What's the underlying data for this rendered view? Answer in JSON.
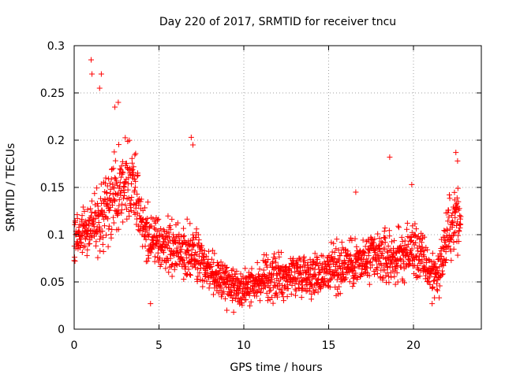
{
  "chart_data": {
    "type": "scatter",
    "title": "Day 220 of 2017, SRMTID for receiver tncu",
    "xlabel": "GPS time / hours",
    "ylabel": "SRMTID / TECUs",
    "xlim": [
      0,
      24
    ],
    "ylim": [
      0,
      0.3
    ],
    "grid": true,
    "marker": "+",
    "color": "#ff0000",
    "x_ticks": [
      {
        "value": 0,
        "label": "0"
      },
      {
        "value": 5,
        "label": "5"
      },
      {
        "value": 10,
        "label": "10"
      },
      {
        "value": 15,
        "label": "15"
      },
      {
        "value": 20,
        "label": "20"
      }
    ],
    "y_ticks": [
      {
        "value": 0,
        "label": "0"
      },
      {
        "value": 0.05,
        "label": "0.05"
      },
      {
        "value": 0.1,
        "label": "0.1"
      },
      {
        "value": 0.15,
        "label": "0.15"
      },
      {
        "value": 0.2,
        "label": "0.2"
      },
      {
        "value": 0.25,
        "label": "0.25"
      },
      {
        "value": 0.3,
        "label": "0.3"
      }
    ],
    "series": [
      {
        "name": "SRMTID",
        "envelope_hours": [
          0,
          0.5,
          1,
          1.5,
          2,
          2.5,
          3,
          3.5,
          4,
          4.5,
          5,
          5.5,
          6,
          6.5,
          7,
          7.5,
          8,
          8.5,
          9,
          9.5,
          10,
          10.5,
          11,
          11.5,
          12,
          12.5,
          13,
          13.5,
          14,
          14.5,
          15,
          15.5,
          16,
          16.5,
          17,
          17.5,
          18,
          18.5,
          19,
          19.5,
          20,
          20.5,
          21,
          21.5,
          22,
          22.5,
          22.8
        ],
        "median_srmtid": [
          0.095,
          0.105,
          0.112,
          0.12,
          0.13,
          0.15,
          0.16,
          0.15,
          0.115,
          0.095,
          0.09,
          0.085,
          0.085,
          0.085,
          0.085,
          0.07,
          0.06,
          0.055,
          0.05,
          0.045,
          0.045,
          0.05,
          0.05,
          0.055,
          0.055,
          0.055,
          0.06,
          0.06,
          0.058,
          0.058,
          0.065,
          0.065,
          0.07,
          0.07,
          0.07,
          0.075,
          0.075,
          0.075,
          0.075,
          0.08,
          0.085,
          0.075,
          0.06,
          0.06,
          0.1,
          0.12,
          0.11
        ],
        "spread_srmtid": [
          0.025,
          0.03,
          0.035,
          0.045,
          0.05,
          0.05,
          0.045,
          0.04,
          0.035,
          0.03,
          0.03,
          0.03,
          0.032,
          0.035,
          0.035,
          0.03,
          0.025,
          0.022,
          0.02,
          0.02,
          0.02,
          0.02,
          0.022,
          0.025,
          0.025,
          0.025,
          0.025,
          0.025,
          0.025,
          0.025,
          0.028,
          0.03,
          0.03,
          0.03,
          0.03,
          0.03,
          0.032,
          0.035,
          0.03,
          0.03,
          0.035,
          0.03,
          0.025,
          0.028,
          0.035,
          0.04,
          0.04
        ],
        "peaks": [
          {
            "x": 1.0,
            "y": 0.285
          },
          {
            "x": 1.05,
            "y": 0.27
          },
          {
            "x": 1.6,
            "y": 0.27
          },
          {
            "x": 1.5,
            "y": 0.255
          },
          {
            "x": 2.6,
            "y": 0.24
          },
          {
            "x": 2.4,
            "y": 0.235
          },
          {
            "x": 6.9,
            "y": 0.203
          },
          {
            "x": 7.0,
            "y": 0.195
          },
          {
            "x": 18.6,
            "y": 0.182
          },
          {
            "x": 22.5,
            "y": 0.187
          },
          {
            "x": 22.6,
            "y": 0.178
          },
          {
            "x": 19.9,
            "y": 0.153
          },
          {
            "x": 16.6,
            "y": 0.145
          }
        ],
        "troughs": [
          {
            "x": 9.0,
            "y": 0.02
          },
          {
            "x": 9.4,
            "y": 0.018
          },
          {
            "x": 21.1,
            "y": 0.027
          },
          {
            "x": 4.5,
            "y": 0.027
          }
        ]
      }
    ]
  }
}
